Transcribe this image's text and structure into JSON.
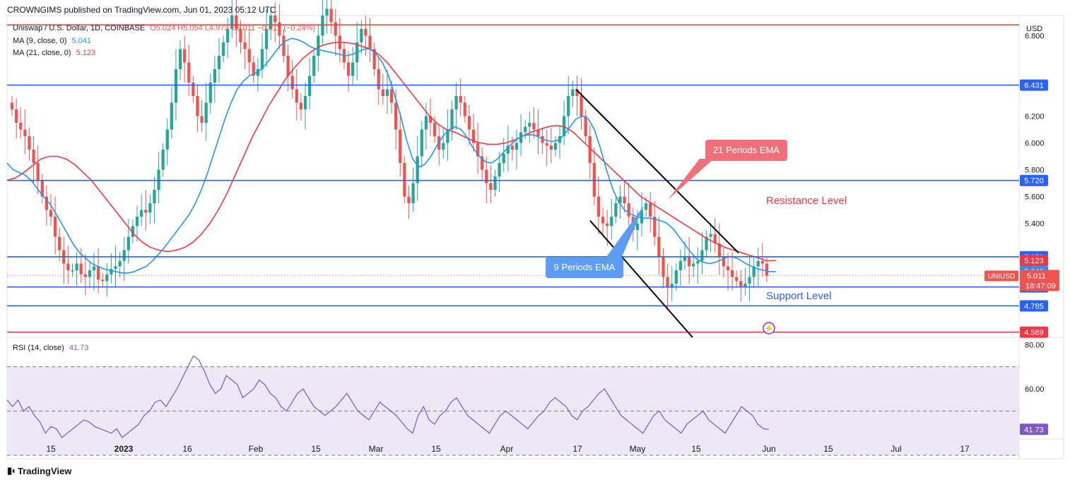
{
  "header": {
    "published": "CROWNGIMS published on TradingView.com, Jun 01, 2023 05:12 UTC",
    "brand": "TradingView"
  },
  "legend": {
    "symbol": "Uniswap / U.S. Dollar, 1D, COINBASE",
    "ohlc": "O5.024 H5.054 L4.973 C5.011 −0.012 (−0.24%)",
    "ma9_label": "MA (9, close, 0)",
    "ma9_value": "5.041",
    "ma21_label": "MA (21, close, 0)",
    "ma21_value": "5.123",
    "rsi_label": "RSI (14, close)",
    "rsi_value": "41.73"
  },
  "colors": {
    "up": "#26a69a",
    "down": "#ef5350",
    "ma9": "#2196f3",
    "ma21": "#f23645",
    "hline_blue": "#2962ff",
    "hline_red": "#f23645",
    "rsi": "#7e57c2",
    "rsi_band": "#ede7f6"
  },
  "annotations": {
    "ema21": "21 Periods EMA",
    "ema9": "9 Periods EMA",
    "resistance": "Resistance Level",
    "support": "Support Level"
  },
  "chart_data": {
    "type": "candlestick",
    "currency": "USD",
    "ylim": [
      4.55,
      6.95
    ],
    "y_ticks": [
      "6.800",
      "6.200",
      "6.000",
      "5.800",
      "5.600",
      "5.400"
    ],
    "price_labels": [
      {
        "text": "6.431",
        "value": 6.431,
        "color": "#2962ff"
      },
      {
        "text": "5.720",
        "value": 5.72,
        "color": "#2962ff"
      },
      {
        "text": "5.151",
        "value": 5.151,
        "color": "#2962ff"
      },
      {
        "text": "5.123",
        "value": 5.123,
        "color": "#f23645"
      },
      {
        "text": "5.041",
        "value": 5.041,
        "color": "#2196f3"
      },
      {
        "text": "4.926",
        "value": 4.926,
        "color": "#2962ff"
      },
      {
        "text": "4.785",
        "value": 4.785,
        "color": "#2962ff"
      },
      {
        "text": "4.589",
        "value": 4.589,
        "color": "#f23645"
      }
    ],
    "horizontal_levels": [
      {
        "value": 6.88,
        "color": "#f23645"
      },
      {
        "value": 6.431,
        "color": "#2962ff"
      },
      {
        "value": 5.72,
        "color": "#2962ff"
      },
      {
        "value": 5.151,
        "color": "#2962ff"
      },
      {
        "value": 4.926,
        "color": "#2962ff"
      },
      {
        "value": 4.785,
        "color": "#2962ff"
      },
      {
        "value": 4.589,
        "color": "#f23645"
      }
    ],
    "last_price": {
      "symbol": "UNIUSD",
      "price": "5.011",
      "countdown": "18:47:09",
      "value": 5.011
    },
    "x_ticks": [
      "15",
      "2023",
      "16",
      "Feb",
      "15",
      "Mar",
      "15",
      "Apr",
      "17",
      "May",
      "15",
      "Jun",
      "15",
      "Jul",
      "17"
    ],
    "candles_start": "2022-12-03",
    "closes": [
      6.25,
      6.15,
      6.1,
      6.05,
      5.95,
      5.85,
      5.72,
      5.6,
      5.5,
      5.45,
      5.3,
      5.2,
      5.1,
      5.05,
      5.05,
      5.1,
      5.02,
      5.0,
      5.05,
      5.08,
      4.98,
      4.97,
      5.02,
      5.06,
      5.08,
      5.12,
      5.2,
      5.3,
      5.38,
      5.45,
      5.5,
      5.48,
      5.55,
      5.65,
      5.8,
      5.95,
      6.1,
      6.3,
      6.55,
      6.7,
      6.6,
      6.45,
      6.35,
      6.2,
      6.15,
      6.3,
      6.45,
      6.55,
      6.65,
      6.75,
      6.85,
      6.95,
      6.85,
      6.75,
      6.7,
      6.6,
      6.5,
      6.55,
      6.7,
      6.85,
      6.95,
      6.9,
      6.8,
      6.65,
      6.5,
      6.4,
      6.3,
      6.25,
      6.35,
      6.5,
      6.65,
      6.8,
      6.95,
      7.0,
      6.9,
      6.8,
      6.7,
      6.6,
      6.5,
      6.6,
      6.75,
      6.85,
      6.8,
      6.7,
      6.55,
      6.4,
      6.35,
      6.4,
      6.3,
      6.1,
      5.85,
      5.6,
      5.55,
      5.7,
      5.9,
      6.1,
      6.2,
      6.15,
      6.05,
      5.95,
      6.0,
      6.1,
      6.25,
      6.35,
      6.3,
      6.2,
      6.1,
      6.0,
      5.9,
      5.8,
      5.7,
      5.65,
      5.75,
      5.85,
      5.92,
      5.98,
      5.95,
      6.0,
      6.08,
      6.12,
      6.15,
      6.1,
      6.05,
      6.0,
      5.98,
      5.95,
      6.0,
      6.05,
      6.2,
      6.35,
      6.4,
      6.35,
      6.2,
      6.05,
      5.85,
      5.6,
      5.45,
      5.4,
      5.38,
      5.45,
      5.55,
      5.6,
      5.55,
      5.45,
      5.35,
      5.4,
      5.5,
      5.55,
      5.45,
      5.3,
      5.15,
      5.0,
      4.92,
      4.95,
      5.05,
      5.12,
      5.15,
      5.08,
      5.1,
      5.12,
      5.2,
      5.3,
      5.32,
      5.25,
      5.15,
      5.08,
      5.05,
      5.0,
      4.97,
      4.93,
      4.95,
      5.0,
      5.08,
      5.12,
      5.1,
      5.011
    ],
    "ma9": [
      5.85,
      5.8,
      5.78,
      5.76,
      5.72,
      5.66,
      5.6,
      5.55,
      5.48,
      5.4,
      5.32,
      5.24,
      5.18,
      5.14,
      5.1,
      5.08,
      5.06,
      5.05,
      5.04,
      5.03,
      5.03,
      5.04,
      5.06,
      5.08,
      5.12,
      5.17,
      5.22,
      5.28,
      5.34,
      5.4,
      5.46,
      5.54,
      5.64,
      5.76,
      5.9,
      6.04,
      6.18,
      6.3,
      6.4,
      6.46,
      6.5,
      6.52,
      6.55,
      6.6,
      6.66,
      6.72,
      6.76,
      6.78,
      6.77,
      6.75,
      6.72,
      6.7,
      6.69,
      6.68,
      6.67,
      6.66,
      6.65,
      6.66,
      6.68,
      6.7,
      6.7,
      6.66,
      6.6,
      6.5,
      6.36,
      6.2,
      6.02,
      5.88,
      5.82,
      5.84,
      5.9,
      5.98,
      6.05,
      6.1,
      6.12,
      6.1,
      6.04,
      5.96,
      5.9,
      5.86,
      5.85,
      5.88,
      5.93,
      5.98,
      6.02,
      6.05,
      6.06,
      6.06,
      6.04,
      6.02,
      6.01,
      6.02,
      6.06,
      6.12,
      6.18,
      6.2,
      6.18,
      6.1,
      5.96,
      5.8,
      5.66,
      5.56,
      5.5,
      5.47,
      5.45,
      5.44,
      5.44,
      5.43,
      5.42,
      5.4,
      5.36,
      5.3,
      5.24,
      5.18,
      5.13,
      5.11,
      5.1,
      5.11,
      5.13,
      5.15,
      5.15,
      5.13,
      5.1,
      5.08,
      5.06,
      5.05,
      5.04,
      5.041
    ],
    "ma21": [
      5.72,
      5.74,
      5.78,
      5.83,
      5.88,
      5.9,
      5.9,
      5.88,
      5.84,
      5.78,
      5.72,
      5.64,
      5.56,
      5.48,
      5.4,
      5.32,
      5.26,
      5.22,
      5.2,
      5.19,
      5.2,
      5.22,
      5.26,
      5.32,
      5.4,
      5.5,
      5.62,
      5.76,
      5.9,
      6.04,
      6.16,
      6.28,
      6.38,
      6.48,
      6.56,
      6.63,
      6.68,
      6.72,
      6.74,
      6.75,
      6.75,
      6.74,
      6.72,
      6.7,
      6.66,
      6.6,
      6.52,
      6.44,
      6.36,
      6.28,
      6.2,
      6.14,
      6.1,
      6.08,
      6.05,
      6.02,
      6.0,
      5.99,
      5.99,
      6.0,
      6.02,
      6.05,
      6.08,
      6.1,
      6.12,
      6.13,
      6.12,
      6.08,
      6.02,
      5.96,
      5.9,
      5.84,
      5.78,
      5.72,
      5.66,
      5.6,
      5.56,
      5.52,
      5.48,
      5.44,
      5.4,
      5.36,
      5.32,
      5.28,
      5.25,
      5.22,
      5.2,
      5.18,
      5.16,
      5.14,
      5.12,
      5.123
    ],
    "rsi": {
      "ylim": [
        38,
        82
      ],
      "y_ticks": [
        "80.00",
        "60.00"
      ],
      "overbought": 70,
      "oversold": 30,
      "midline": 50,
      "values": [
        55,
        52,
        55,
        50,
        52,
        48,
        45,
        40,
        43,
        42,
        38,
        40,
        42,
        44,
        46,
        45,
        43,
        42,
        41,
        40,
        42,
        38,
        40,
        42,
        44,
        48,
        50,
        54,
        55,
        52,
        56,
        60,
        65,
        70,
        75,
        73,
        68,
        62,
        58,
        60,
        66,
        64,
        62,
        56,
        58,
        60,
        64,
        62,
        58,
        56,
        52,
        50,
        54,
        58,
        60,
        56,
        52,
        50,
        48,
        50,
        52,
        55,
        58,
        54,
        50,
        48,
        46,
        50,
        54,
        52,
        50,
        48,
        45,
        42,
        40,
        48,
        52,
        46,
        44,
        48,
        50,
        54,
        56,
        52,
        48,
        46,
        44,
        42,
        40,
        44,
        48,
        50,
        48,
        46,
        44,
        42,
        45,
        48,
        50,
        54,
        56,
        54,
        52,
        48,
        46,
        50,
        52,
        55,
        58,
        60,
        56,
        52,
        48,
        46,
        44,
        42,
        40,
        44,
        48,
        50,
        46,
        44,
        42,
        40,
        44,
        46,
        48,
        50,
        46,
        44,
        42,
        40,
        44,
        48,
        52,
        50,
        48,
        44,
        42,
        41.73
      ]
    }
  }
}
